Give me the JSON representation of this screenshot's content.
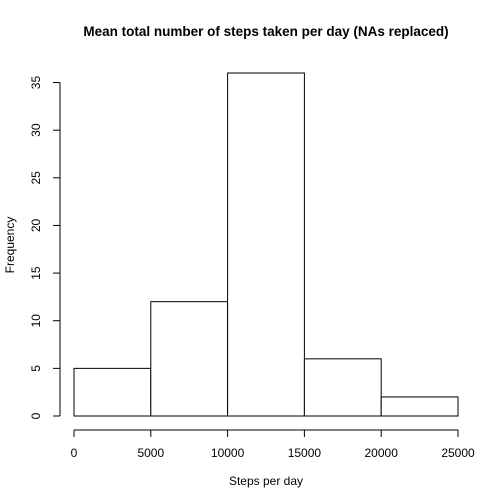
{
  "chart_data": {
    "type": "bar",
    "title": "Mean total number of steps taken per day (NAs replaced)",
    "xlabel": "Steps per day",
    "ylabel": "Frequency",
    "bins": [
      [
        0,
        5000
      ],
      [
        5000,
        10000
      ],
      [
        10000,
        15000
      ],
      [
        15000,
        20000
      ],
      [
        20000,
        25000
      ]
    ],
    "values": [
      5,
      12,
      36,
      6,
      2
    ],
    "xlim": [
      0,
      25000
    ],
    "ylim": [
      0,
      36
    ],
    "x_ticks": [
      "0",
      "5000",
      "10000",
      "15000",
      "20000",
      "25000"
    ],
    "y_ticks": [
      "0",
      "5",
      "10",
      "15",
      "20",
      "25",
      "30",
      "35"
    ],
    "bar_fill": "#ffffff",
    "bar_stroke": "#000000",
    "grid": false,
    "legend": "none"
  }
}
